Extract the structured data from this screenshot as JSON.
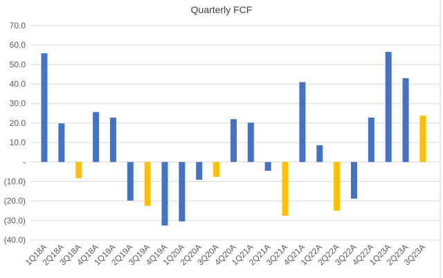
{
  "chart_data": {
    "type": "bar",
    "title": "Quarterly FCF",
    "xlabel": "",
    "ylabel": "",
    "ylim": [
      -40,
      70
    ],
    "y_tick_values": [
      70,
      60,
      50,
      40,
      30,
      20,
      10,
      0,
      -10,
      -20,
      -30,
      -40
    ],
    "y_tick_labels": [
      "70.0",
      "60.0",
      "50.0",
      "40.0",
      "30.0",
      "20.0",
      "10.0",
      "-",
      "(10.0)",
      "(20.0)",
      "(30.0)",
      "(40.0)"
    ],
    "grid": true,
    "legend": "none",
    "categories": [
      "1Q18A",
      "2Q18A",
      "3Q18A",
      "4Q18A",
      "1Q19A",
      "2Q19A",
      "3Q19A",
      "4Q19A",
      "1Q20A",
      "2Q20A",
      "3Q20A",
      "4Q20A",
      "1Q21A",
      "2Q21A",
      "3Q21A",
      "4Q21A",
      "1Q22A",
      "2Q22A",
      "3Q22A",
      "4Q22A",
      "1Q23A",
      "2Q23A",
      "3Q23A"
    ],
    "values": [
      55.8,
      19.8,
      -8.3,
      25.6,
      22.8,
      -19.8,
      -22.5,
      -32.6,
      -30.5,
      -9.1,
      -7.6,
      22.0,
      20.2,
      -4.5,
      -27.5,
      41.0,
      8.6,
      -25.0,
      -18.8,
      22.8,
      56.5,
      43.0,
      23.8
    ],
    "bar_colors": [
      "#4472C4",
      "#4472C4",
      "#FFC000",
      "#4472C4",
      "#4472C4",
      "#4472C4",
      "#FFC000",
      "#4472C4",
      "#4472C4",
      "#4472C4",
      "#FFC000",
      "#4472C4",
      "#4472C4",
      "#4472C4",
      "#FFC000",
      "#4472C4",
      "#4472C4",
      "#FFC000",
      "#4472C4",
      "#4472C4",
      "#4472C4",
      "#4472C4",
      "#FFC000"
    ],
    "colors": {
      "blue": "#4472C4",
      "yellow": "#FFC000",
      "grid": "#D9D9D9",
      "text": "#595959"
    }
  }
}
